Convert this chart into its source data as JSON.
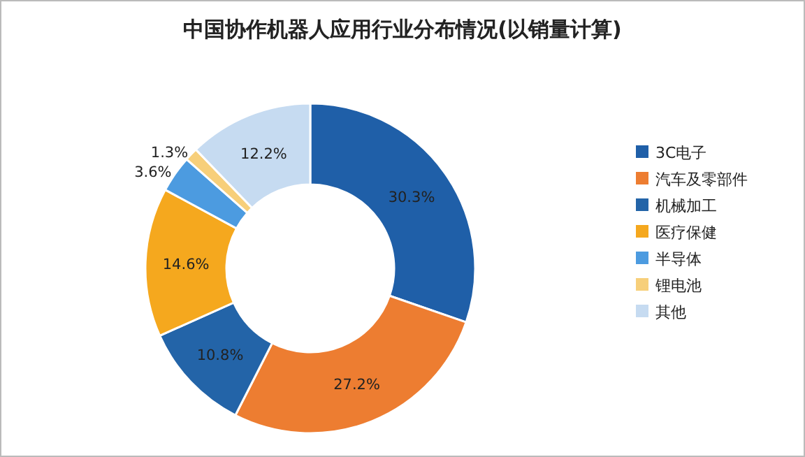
{
  "chart_data": {
    "type": "donut",
    "title": "中国协作机器人应用行业分布情况(以销量计算)",
    "categories": [
      "3C电子",
      "汽车及零部件",
      "机械加工",
      "医疗保健",
      "半导体",
      "锂电池",
      "其他"
    ],
    "values": [
      30.3,
      27.2,
      10.8,
      14.6,
      3.6,
      1.3,
      12.2
    ],
    "value_labels": [
      "30.3%",
      "27.2%",
      "10.8%",
      "14.6%",
      "3.6%",
      "1.3%",
      "12.2%"
    ],
    "colors": [
      "#1f5fa8",
      "#ed7d31",
      "#2364a8",
      "#f5a81e",
      "#4c9be0",
      "#f7cf7a",
      "#c6dbf1"
    ],
    "legend": "right"
  }
}
